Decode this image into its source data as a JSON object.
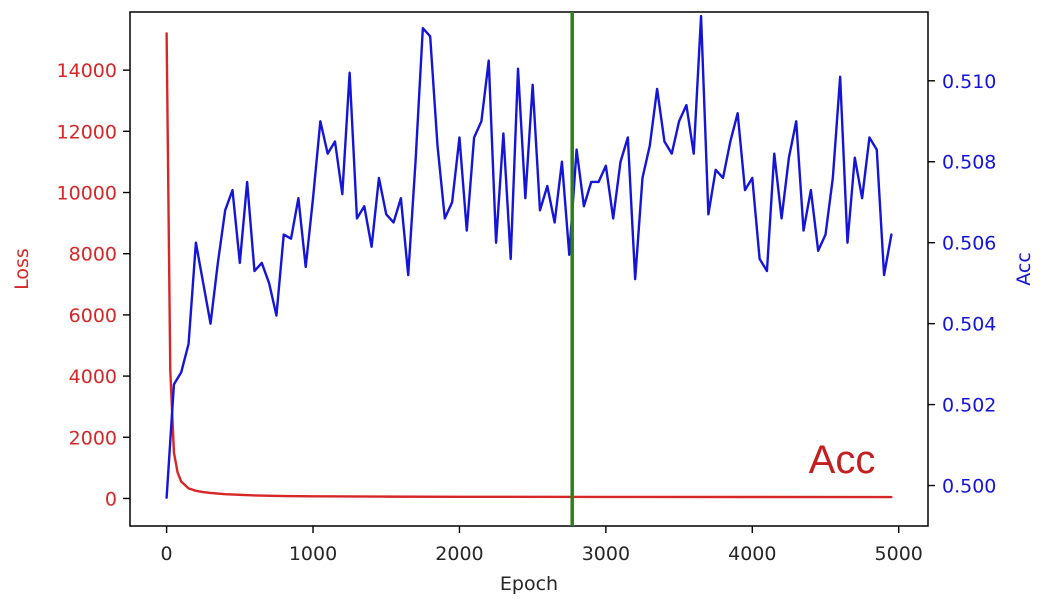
{
  "chart_data": {
    "type": "line",
    "xlabel": "Epoch",
    "ylabel_left": "Loss",
    "ylabel_right": "Acc",
    "annotation_text": "Acc",
    "vertical_marker_x": 2770,
    "x_range": [
      -250,
      5200
    ],
    "y_left_range": [
      -900,
      15900
    ],
    "y_right_range": [
      0.499,
      0.5117
    ],
    "x_ticks": [
      0,
      1000,
      2000,
      3000,
      4000,
      5000
    ],
    "y_left_ticks": [
      0,
      2000,
      4000,
      6000,
      8000,
      10000,
      12000,
      14000
    ],
    "y_right_ticks": [
      0.5,
      0.502,
      0.504,
      0.506,
      0.508,
      0.51
    ],
    "colors": {
      "loss": "#d62728",
      "acc": "#1515d8",
      "marker": "#2f7f1a",
      "annotation": "#c41e1e",
      "axis": "#000000",
      "tick_text": "#262626"
    },
    "series": [
      {
        "name": "Loss",
        "axis": "left",
        "x": [
          0,
          25,
          50,
          75,
          100,
          150,
          200,
          250,
          300,
          400,
          500,
          600,
          800,
          1000,
          1500,
          2000,
          3000,
          4000,
          4950
        ],
        "values": [
          15200,
          4200,
          1500,
          850,
          550,
          330,
          250,
          210,
          180,
          140,
          120,
          100,
          80,
          70,
          60,
          55,
          50,
          48,
          45
        ]
      },
      {
        "name": "Acc",
        "axis": "right",
        "x": [
          0,
          50,
          100,
          150,
          200,
          250,
          300,
          350,
          400,
          450,
          500,
          550,
          600,
          650,
          700,
          750,
          800,
          850,
          900,
          950,
          1000,
          1050,
          1100,
          1150,
          1200,
          1250,
          1300,
          1350,
          1400,
          1450,
          1500,
          1550,
          1600,
          1650,
          1700,
          1750,
          1800,
          1850,
          1900,
          1950,
          2000,
          2050,
          2100,
          2150,
          2200,
          2250,
          2300,
          2350,
          2400,
          2450,
          2500,
          2550,
          2600,
          2650,
          2700,
          2750,
          2800,
          2850,
          2900,
          2950,
          3000,
          3050,
          3100,
          3150,
          3200,
          3250,
          3300,
          3350,
          3400,
          3450,
          3500,
          3550,
          3600,
          3650,
          3700,
          3750,
          3800,
          3850,
          3900,
          3950,
          4000,
          4050,
          4100,
          4150,
          4200,
          4250,
          4300,
          4350,
          4400,
          4450,
          4500,
          4550,
          4600,
          4650,
          4700,
          4750,
          4800,
          4850,
          4900,
          4950
        ],
        "values": [
          0.4997,
          0.5025,
          0.5028,
          0.5035,
          0.506,
          0.505,
          0.504,
          0.5055,
          0.5068,
          0.5073,
          0.5055,
          0.5075,
          0.5053,
          0.5055,
          0.505,
          0.5042,
          0.5062,
          0.5061,
          0.5071,
          0.5054,
          0.5071,
          0.509,
          0.5082,
          0.5085,
          0.5072,
          0.5102,
          0.5066,
          0.5069,
          0.5059,
          0.5076,
          0.5067,
          0.5065,
          0.5071,
          0.5052,
          0.508,
          0.5113,
          0.5111,
          0.5084,
          0.5066,
          0.507,
          0.5086,
          0.5063,
          0.5086,
          0.509,
          0.5105,
          0.506,
          0.5087,
          0.5056,
          0.5103,
          0.5071,
          0.5099,
          0.5068,
          0.5074,
          0.5065,
          0.508,
          0.5057,
          0.5083,
          0.5069,
          0.5075,
          0.5075,
          0.5079,
          0.5066,
          0.508,
          0.5086,
          0.5051,
          0.5076,
          0.5084,
          0.5098,
          0.5085,
          0.5082,
          0.509,
          0.5094,
          0.5082,
          0.5116,
          0.5067,
          0.5078,
          0.5076,
          0.5085,
          0.5092,
          0.5073,
          0.5076,
          0.5056,
          0.5053,
          0.5082,
          0.5066,
          0.5081,
          0.509,
          0.5063,
          0.5073,
          0.5058,
          0.5062,
          0.5076,
          0.5101,
          0.506,
          0.5081,
          0.5071,
          0.5086,
          0.5083,
          0.5052,
          0.5062
        ]
      }
    ]
  }
}
